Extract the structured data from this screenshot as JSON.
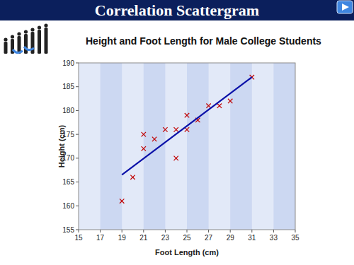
{
  "header": {
    "title": "Correlation Scattergram",
    "button": "Movie"
  },
  "chart_data": {
    "type": "scatter",
    "title": "Height and Foot Length for Male College Students",
    "x_label": "Foot Length (cm)",
    "y_label": "Height (cm)",
    "xlim": [
      15,
      35
    ],
    "xticks": [
      15,
      17,
      19,
      21,
      23,
      25,
      27,
      29,
      31,
      33,
      35
    ],
    "ylim": [
      155,
      190
    ],
    "yticks": [
      155,
      160,
      165,
      170,
      175,
      180,
      185,
      190
    ],
    "grid": true,
    "series": [
      {
        "type": "scatter",
        "color": "#c00000",
        "marker": "x",
        "x": [
          19,
          20,
          21,
          21,
          22,
          23,
          24,
          24,
          25,
          25,
          26,
          27,
          28,
          29,
          31
        ],
        "values": [
          161,
          166,
          175,
          172,
          174,
          176,
          176,
          170,
          179,
          176,
          178,
          181,
          181,
          182,
          187
        ]
      },
      {
        "type": "line",
        "color": "#0a10a8",
        "line_style": "solid",
        "x": [
          19,
          31
        ],
        "values": [
          166.5,
          187
        ]
      }
    ]
  }
}
